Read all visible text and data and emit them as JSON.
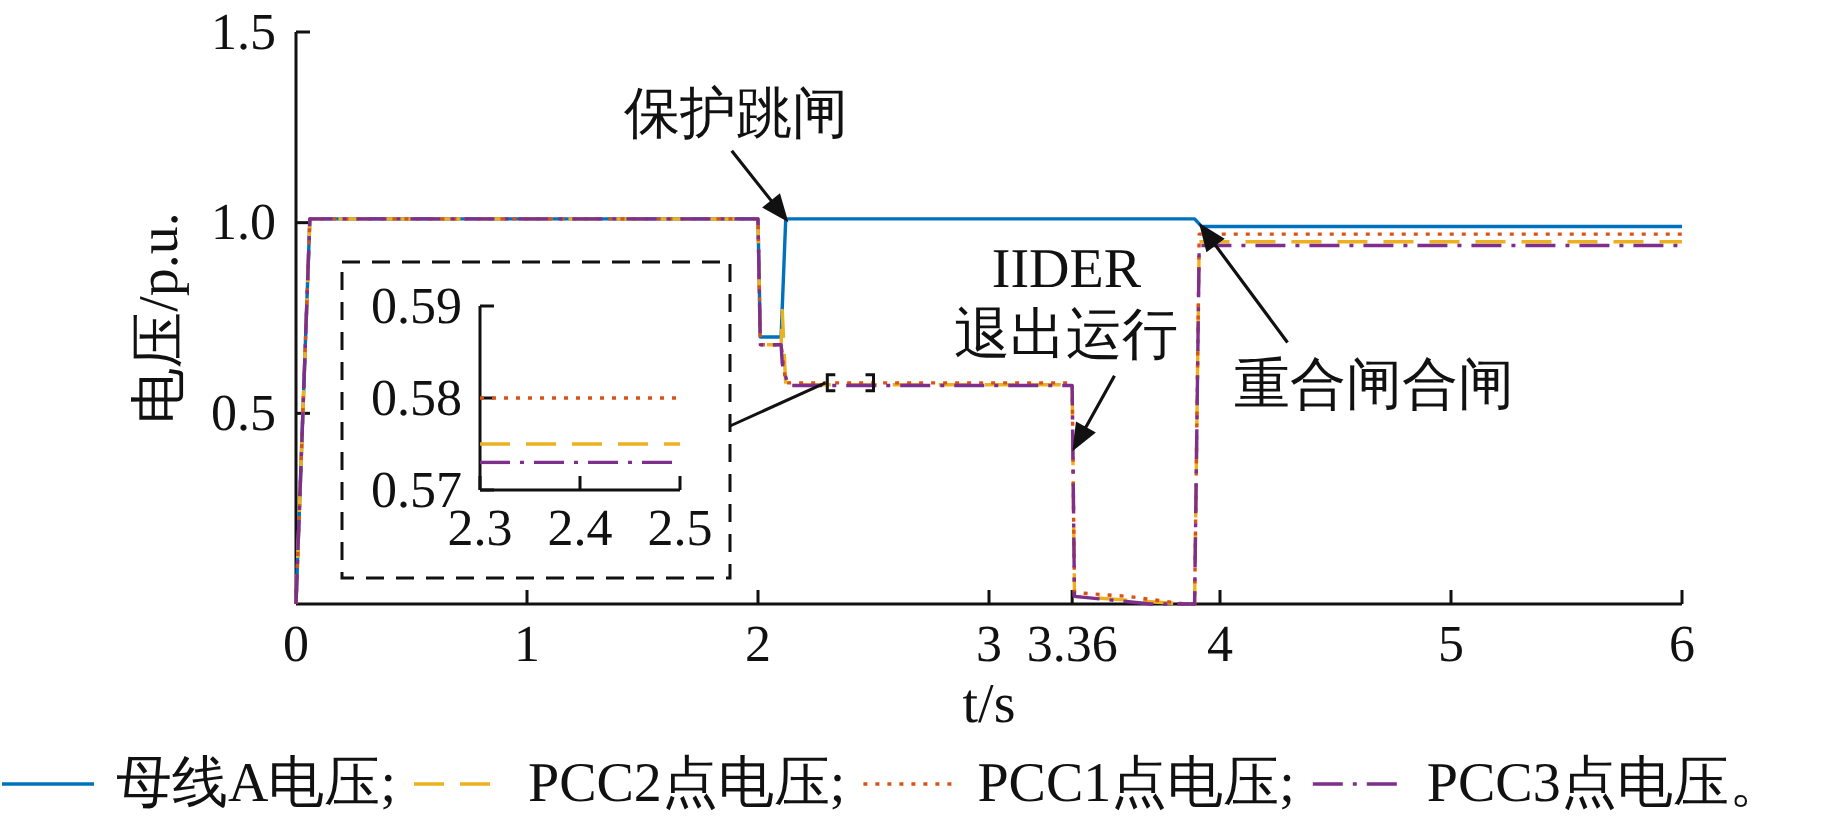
{
  "chart_data": [
    {
      "type": "line",
      "xlabel": "t/s",
      "ylabel": "电压/p.u.",
      "xlim": [
        0,
        6
      ],
      "ylim": [
        0,
        1.5
      ],
      "xticks": [
        0,
        1,
        2,
        3,
        3.36,
        4,
        5,
        6
      ],
      "yticks": [
        0.5,
        {
          "value": 1,
          "label": "1.0"
        },
        1.5
      ],
      "legend": "bottom",
      "series": [
        {
          "name": "母线A电压;",
          "color": "#0072bd",
          "line_style": "solid",
          "x": [
            0,
            0.06,
            2.0,
            2.01,
            2.1,
            2.12,
            3.89,
            3.92,
            6
          ],
          "values": [
            0,
            1.01,
            1.01,
            0.7,
            0.7,
            1.01,
            1.01,
            0.99,
            0.99
          ]
        },
        {
          "name": "PCC2点电压;",
          "color": "#edb120",
          "line_style": "dashed",
          "x": [
            0,
            0.06,
            2.0,
            2.01,
            2.1,
            2.105,
            2.12,
            3.36,
            3.37,
            3.6,
            3.85,
            3.89,
            3.91,
            6
          ],
          "values": [
            0,
            1.01,
            1.01,
            0.68,
            0.68,
            0.77,
            0.575,
            0.575,
            0.02,
            0.01,
            0,
            0,
            0.95,
            0.95
          ]
        },
        {
          "name": "PCC1点电压;",
          "color": "#d95319",
          "line_style": "dotted",
          "x": [
            0,
            0.06,
            2.0,
            2.01,
            2.1,
            2.12,
            3.36,
            3.37,
            3.6,
            3.85,
            3.89,
            3.91,
            6
          ],
          "values": [
            0,
            1.01,
            1.01,
            0.68,
            0.68,
            0.58,
            0.58,
            0.03,
            0.02,
            0,
            0,
            0.97,
            0.97
          ]
        },
        {
          "name": "PCC3点电压。",
          "color": "#7e2f8e",
          "line_style": "dashdot",
          "x": [
            0,
            0.06,
            2.0,
            2.01,
            2.1,
            2.105,
            2.13,
            3.36,
            3.37,
            3.7,
            3.89,
            3.91,
            6
          ],
          "values": [
            0,
            1.01,
            1.01,
            0.68,
            0.68,
            0.63,
            0.573,
            0.573,
            0.02,
            0,
            0,
            0.94,
            0.94
          ]
        }
      ],
      "annotations": [
        {
          "text": "保护跳闸",
          "x": 2.12,
          "y": 1.01
        },
        {
          "text": "IIDER\n退出运行",
          "x": 3.37,
          "y": 0.41
        },
        {
          "text": "重合闸合闸",
          "x": 3.92,
          "y": 0.99
        }
      ]
    },
    {
      "type": "line",
      "xlim": [
        2.3,
        2.5
      ],
      "ylim": [
        0.57,
        0.59
      ],
      "xticks": [
        2.3,
        2.4,
        2.5
      ],
      "yticks": [
        0.57,
        0.58,
        0.59
      ],
      "series": [
        {
          "color": "#edb120",
          "line_style": "dashed",
          "x": [
            2.3,
            2.5
          ],
          "values": [
            0.575,
            0.575
          ]
        },
        {
          "color": "#d95319",
          "line_style": "dotted",
          "x": [
            2.3,
            2.5
          ],
          "values": [
            0.58,
            0.58
          ]
        },
        {
          "color": "#7e2f8e",
          "line_style": "dashdot",
          "x": [
            2.3,
            2.5
          ],
          "values": [
            0.573,
            0.573
          ]
        }
      ]
    }
  ]
}
